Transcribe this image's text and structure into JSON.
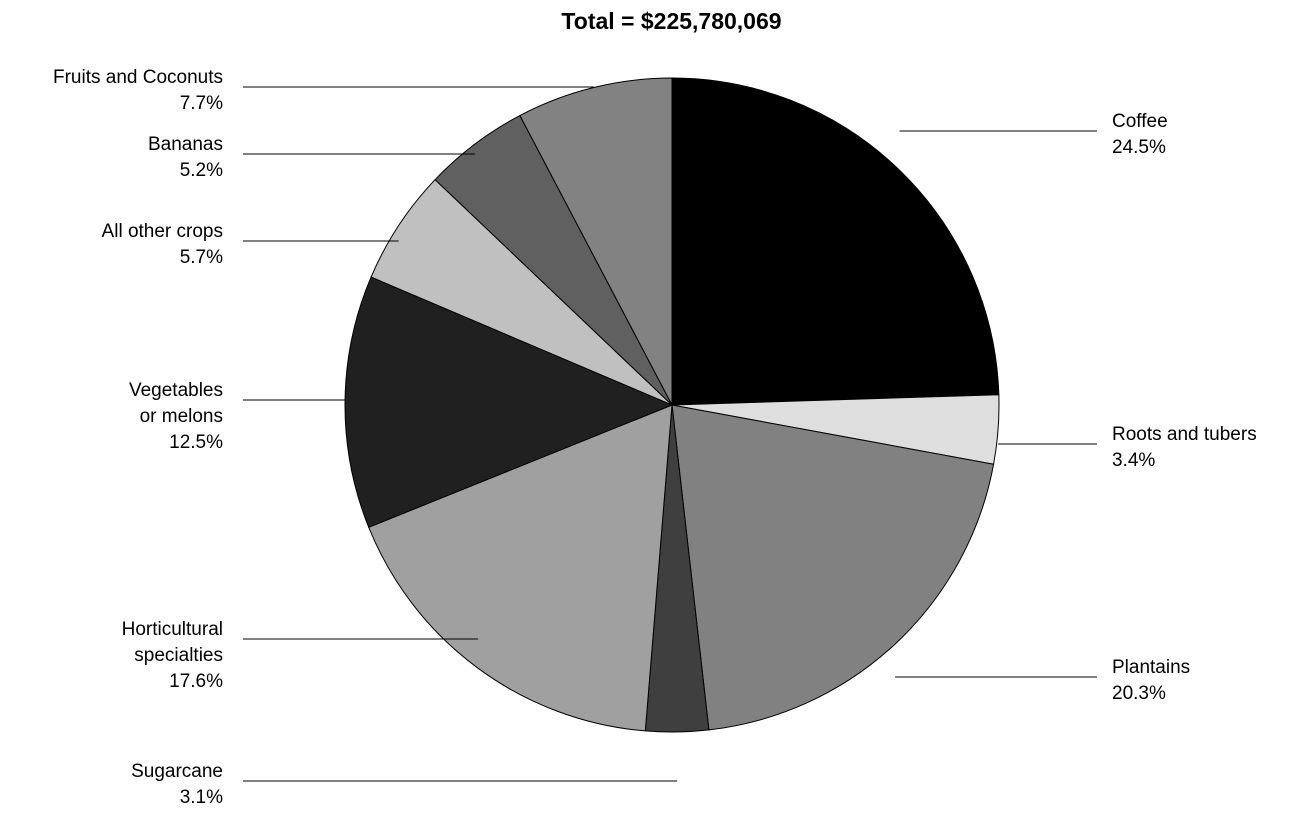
{
  "chart_data": {
    "type": "pie",
    "title": "Total = $225,780,069",
    "start_angle_deg": 0,
    "direction": "clockwise",
    "slices": [
      {
        "label_lines": [
          "Coffee"
        ],
        "pct_text": "24.5%",
        "value": 24.5,
        "color": "#000000",
        "side": "right"
      },
      {
        "label_lines": [
          "Roots and tubers"
        ],
        "pct_text": "3.4%",
        "value": 3.4,
        "color": "#dedede",
        "side": "right"
      },
      {
        "label_lines": [
          "Plantains"
        ],
        "pct_text": "20.3%",
        "value": 20.3,
        "color": "#818181",
        "side": "right"
      },
      {
        "label_lines": [
          "Sugarcane"
        ],
        "pct_text": "3.1%",
        "value": 3.1,
        "color": "#3f3f3f",
        "side": "left"
      },
      {
        "label_lines": [
          "Horticultural",
          "specialties"
        ],
        "pct_text": "17.6%",
        "value": 17.6,
        "color": "#a0a0a0",
        "side": "left"
      },
      {
        "label_lines": [
          "Vegetables",
          "or melons"
        ],
        "pct_text": "12.5%",
        "value": 12.5,
        "color": "#202020",
        "side": "left"
      },
      {
        "label_lines": [
          "All other crops"
        ],
        "pct_text": "5.7%",
        "value": 5.7,
        "color": "#c0c0c0",
        "side": "left"
      },
      {
        "label_lines": [
          "Bananas"
        ],
        "pct_text": "5.2%",
        "value": 5.2,
        "color": "#606060",
        "side": "left"
      },
      {
        "label_lines": [
          "Fruits and Coconuts"
        ],
        "pct_text": "7.7%",
        "value": 7.7,
        "color": "#828282",
        "side": "left"
      }
    ]
  }
}
